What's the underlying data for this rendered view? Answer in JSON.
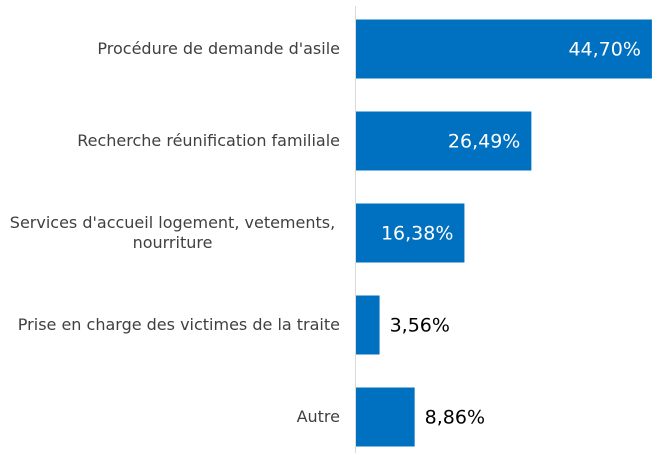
{
  "chart_data": {
    "type": "bar",
    "orientation": "horizontal",
    "categories": [
      "Procédure de demande d'asile",
      "Recherche réunification familiale",
      "Services d'accueil logement, vetements, nourriture",
      "Prise en charge des victimes de la traite",
      "Autre"
    ],
    "values": [
      44.7,
      26.49,
      16.38,
      3.56,
      8.86
    ],
    "value_labels": [
      "44,70%",
      "26,49%",
      "16,38%",
      "3,56%",
      "8,86%"
    ],
    "color": "#0070c0"
  }
}
